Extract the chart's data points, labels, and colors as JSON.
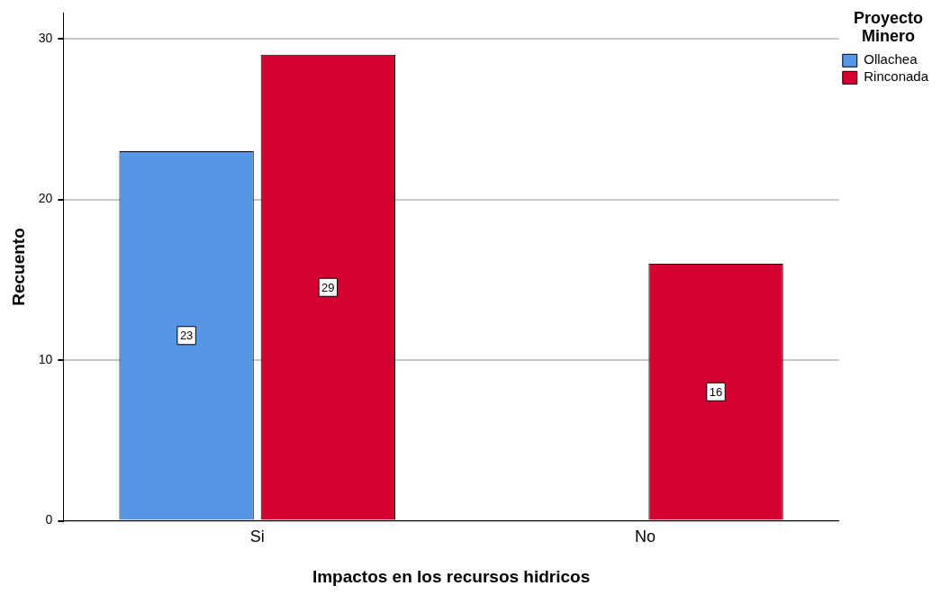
{
  "chart_data": {
    "type": "bar",
    "xlabel": "Impactos en los recursos hidricos",
    "ylabel": "Recuento",
    "legend_title": "Proyecto Minero",
    "categories": [
      "Si",
      "No"
    ],
    "series": [
      {
        "name": "Ollachea",
        "color": "#5596e6",
        "values": [
          23,
          null
        ]
      },
      {
        "name": "Rinconada",
        "color": "#d40030",
        "values": [
          29,
          16
        ]
      }
    ],
    "ylim": [
      0,
      31.6
    ],
    "yticks": [
      0,
      10,
      20,
      30
    ],
    "grid": "y",
    "legend": "top right",
    "data_labels": true
  }
}
